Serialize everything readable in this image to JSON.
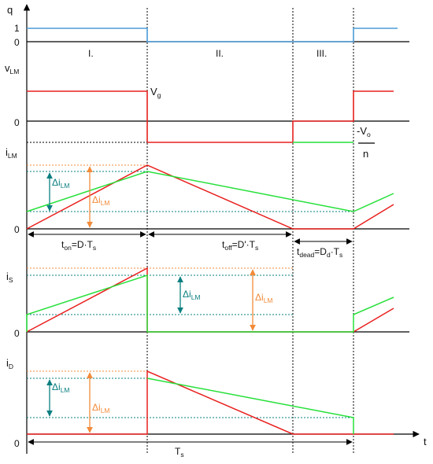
{
  "colors": {
    "axis": "#000000",
    "q": "#4a9bd8",
    "red": "#e8201e",
    "green": "#27e03a",
    "teal": "#0a7f80",
    "orange": "#f28b3a"
  },
  "axes": {
    "t": "t",
    "q": "q",
    "vlm": {
      "main": "v",
      "sub": "LM"
    },
    "ilm": {
      "main": "i",
      "sub": "LM"
    },
    "is": {
      "main": "i",
      "sub": "S"
    },
    "id": {
      "main": "i",
      "sub": "D"
    }
  },
  "ticks": {
    "q_one": "1",
    "zero": "0"
  },
  "regions": {
    "r1": "I.",
    "r2": "II.",
    "r3": "III."
  },
  "vg": {
    "main": "V",
    "sub": "g"
  },
  "neg_vo": {
    "num_main": "-V",
    "num_sub": "o",
    "den": "n"
  },
  "delta": {
    "main": "Δi",
    "sub": "LM"
  },
  "timing": {
    "ton": {
      "pre": "t",
      "sub": "on",
      "post": "=D·T",
      "sub2": "s"
    },
    "toff": {
      "pre": "t",
      "sub": "off",
      "post": "=D'·T",
      "sub2": "s"
    },
    "tdead": {
      "pre": "t",
      "sub": "dead",
      "post": "=D",
      "sub2": "d",
      "post2": "·T",
      "sub3": "s"
    },
    "ts": {
      "main": "T",
      "sub": "s"
    }
  }
}
